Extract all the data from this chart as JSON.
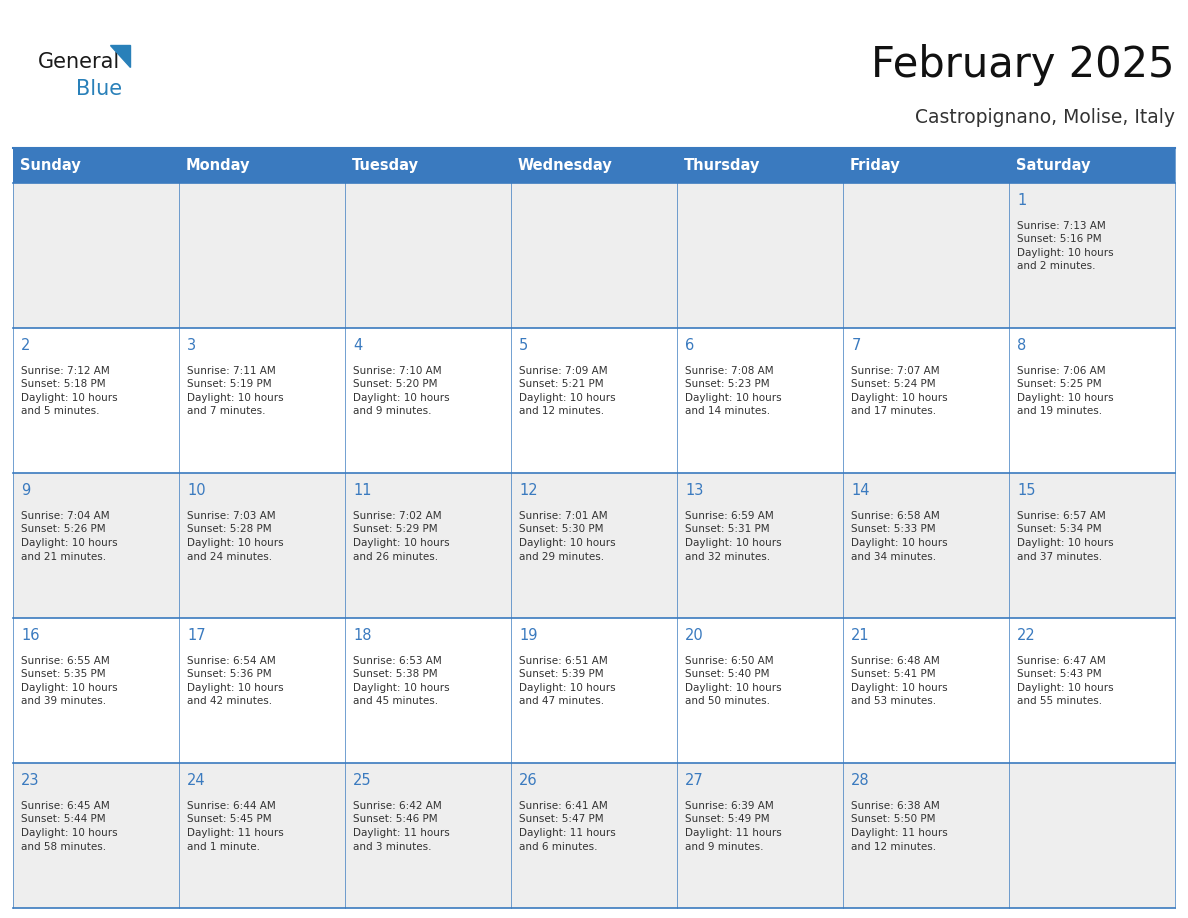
{
  "title": "February 2025",
  "subtitle": "Castropignano, Molise, Italy",
  "header_color": "#3a7abf",
  "header_text_color": "#ffffff",
  "cell_bg_gray": "#eeeeee",
  "cell_bg_white": "#ffffff",
  "border_color": "#3a7abf",
  "text_color": "#333333",
  "day_number_color": "#3a7abf",
  "days_of_week": [
    "Sunday",
    "Monday",
    "Tuesday",
    "Wednesday",
    "Thursday",
    "Friday",
    "Saturday"
  ],
  "calendar_data": [
    [
      null,
      null,
      null,
      null,
      null,
      null,
      {
        "day": 1,
        "sunrise": "7:13 AM",
        "sunset": "5:16 PM",
        "daylight": "10 hours\nand 2 minutes."
      }
    ],
    [
      {
        "day": 2,
        "sunrise": "7:12 AM",
        "sunset": "5:18 PM",
        "daylight": "10 hours\nand 5 minutes."
      },
      {
        "day": 3,
        "sunrise": "7:11 AM",
        "sunset": "5:19 PM",
        "daylight": "10 hours\nand 7 minutes."
      },
      {
        "day": 4,
        "sunrise": "7:10 AM",
        "sunset": "5:20 PM",
        "daylight": "10 hours\nand 9 minutes."
      },
      {
        "day": 5,
        "sunrise": "7:09 AM",
        "sunset": "5:21 PM",
        "daylight": "10 hours\nand 12 minutes."
      },
      {
        "day": 6,
        "sunrise": "7:08 AM",
        "sunset": "5:23 PM",
        "daylight": "10 hours\nand 14 minutes."
      },
      {
        "day": 7,
        "sunrise": "7:07 AM",
        "sunset": "5:24 PM",
        "daylight": "10 hours\nand 17 minutes."
      },
      {
        "day": 8,
        "sunrise": "7:06 AM",
        "sunset": "5:25 PM",
        "daylight": "10 hours\nand 19 minutes."
      }
    ],
    [
      {
        "day": 9,
        "sunrise": "7:04 AM",
        "sunset": "5:26 PM",
        "daylight": "10 hours\nand 21 minutes."
      },
      {
        "day": 10,
        "sunrise": "7:03 AM",
        "sunset": "5:28 PM",
        "daylight": "10 hours\nand 24 minutes."
      },
      {
        "day": 11,
        "sunrise": "7:02 AM",
        "sunset": "5:29 PM",
        "daylight": "10 hours\nand 26 minutes."
      },
      {
        "day": 12,
        "sunrise": "7:01 AM",
        "sunset": "5:30 PM",
        "daylight": "10 hours\nand 29 minutes."
      },
      {
        "day": 13,
        "sunrise": "6:59 AM",
        "sunset": "5:31 PM",
        "daylight": "10 hours\nand 32 minutes."
      },
      {
        "day": 14,
        "sunrise": "6:58 AM",
        "sunset": "5:33 PM",
        "daylight": "10 hours\nand 34 minutes."
      },
      {
        "day": 15,
        "sunrise": "6:57 AM",
        "sunset": "5:34 PM",
        "daylight": "10 hours\nand 37 minutes."
      }
    ],
    [
      {
        "day": 16,
        "sunrise": "6:55 AM",
        "sunset": "5:35 PM",
        "daylight": "10 hours\nand 39 minutes."
      },
      {
        "day": 17,
        "sunrise": "6:54 AM",
        "sunset": "5:36 PM",
        "daylight": "10 hours\nand 42 minutes."
      },
      {
        "day": 18,
        "sunrise": "6:53 AM",
        "sunset": "5:38 PM",
        "daylight": "10 hours\nand 45 minutes."
      },
      {
        "day": 19,
        "sunrise": "6:51 AM",
        "sunset": "5:39 PM",
        "daylight": "10 hours\nand 47 minutes."
      },
      {
        "day": 20,
        "sunrise": "6:50 AM",
        "sunset": "5:40 PM",
        "daylight": "10 hours\nand 50 minutes."
      },
      {
        "day": 21,
        "sunrise": "6:48 AM",
        "sunset": "5:41 PM",
        "daylight": "10 hours\nand 53 minutes."
      },
      {
        "day": 22,
        "sunrise": "6:47 AM",
        "sunset": "5:43 PM",
        "daylight": "10 hours\nand 55 minutes."
      }
    ],
    [
      {
        "day": 23,
        "sunrise": "6:45 AM",
        "sunset": "5:44 PM",
        "daylight": "10 hours\nand 58 minutes."
      },
      {
        "day": 24,
        "sunrise": "6:44 AM",
        "sunset": "5:45 PM",
        "daylight": "11 hours\nand 1 minute."
      },
      {
        "day": 25,
        "sunrise": "6:42 AM",
        "sunset": "5:46 PM",
        "daylight": "11 hours\nand 3 minutes."
      },
      {
        "day": 26,
        "sunrise": "6:41 AM",
        "sunset": "5:47 PM",
        "daylight": "11 hours\nand 6 minutes."
      },
      {
        "day": 27,
        "sunrise": "6:39 AM",
        "sunset": "5:49 PM",
        "daylight": "11 hours\nand 9 minutes."
      },
      {
        "day": 28,
        "sunrise": "6:38 AM",
        "sunset": "5:50 PM",
        "daylight": "11 hours\nand 12 minutes."
      },
      null
    ]
  ],
  "logo_text_general": "General",
  "logo_text_blue": "Blue",
  "logo_color_general": "#1a1a1a",
  "logo_color_blue": "#2980b9",
  "logo_triangle_color": "#2980b9",
  "fig_width": 11.88,
  "fig_height": 9.18,
  "dpi": 100
}
